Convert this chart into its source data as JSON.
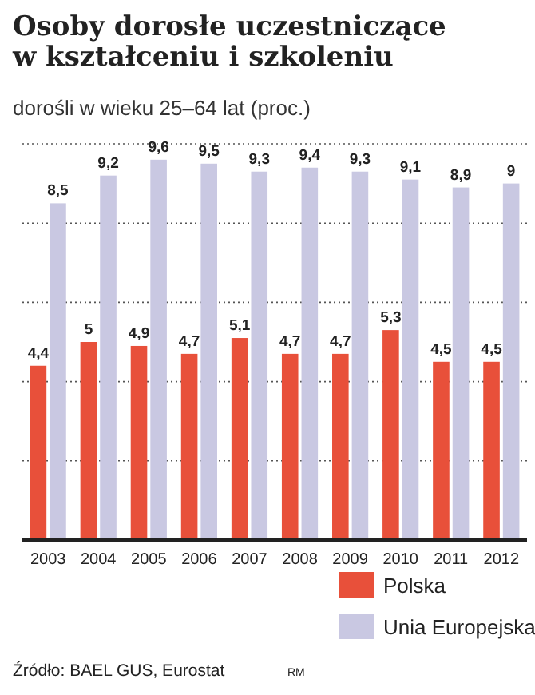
{
  "chart_data": {
    "type": "bar",
    "title": "Osoby dorosłe uczestniczące\nw kształceniu i szkoleniu",
    "subtitle": "dorośli w wieku 25–64 lat (proc.)",
    "categories": [
      "2003",
      "2004",
      "2005",
      "2006",
      "2007",
      "2008",
      "2009",
      "2010",
      "2011",
      "2012"
    ],
    "series": [
      {
        "name": "Polska",
        "color": "#e8503a",
        "values": [
          4.4,
          5,
          4.9,
          4.7,
          5.1,
          4.7,
          4.7,
          5.3,
          4.5,
          4.5
        ],
        "value_labels": [
          "4,4",
          "5",
          "4,9",
          "4,7",
          "5,1",
          "4,7",
          "4,7",
          "5,3",
          "4,5",
          "4,5"
        ]
      },
      {
        "name": "Unia Europejska",
        "color": "#c9c8e2",
        "values": [
          8.5,
          9.2,
          9.6,
          9.5,
          9.3,
          9.4,
          9.3,
          9.1,
          8.9,
          9
        ],
        "value_labels": [
          "8,5",
          "9,2",
          "9,6",
          "9,5",
          "9,3",
          "9,4",
          "9,3",
          "9,1",
          "8,9",
          "9"
        ]
      }
    ],
    "ylim": [
      0,
      10
    ],
    "yticks": [
      {
        "value": 0,
        "label": null
      },
      {
        "value": 2,
        "label": null
      },
      {
        "value": 4,
        "label": null
      },
      {
        "value": 6,
        "label": null
      },
      {
        "value": 8,
        "label": null
      },
      {
        "value": 10,
        "label": null
      }
    ],
    "grid": "y",
    "legend": "bottom right",
    "annotations": [
      "Źródło: BAEL GUS, Eurostat",
      "RM"
    ]
  }
}
